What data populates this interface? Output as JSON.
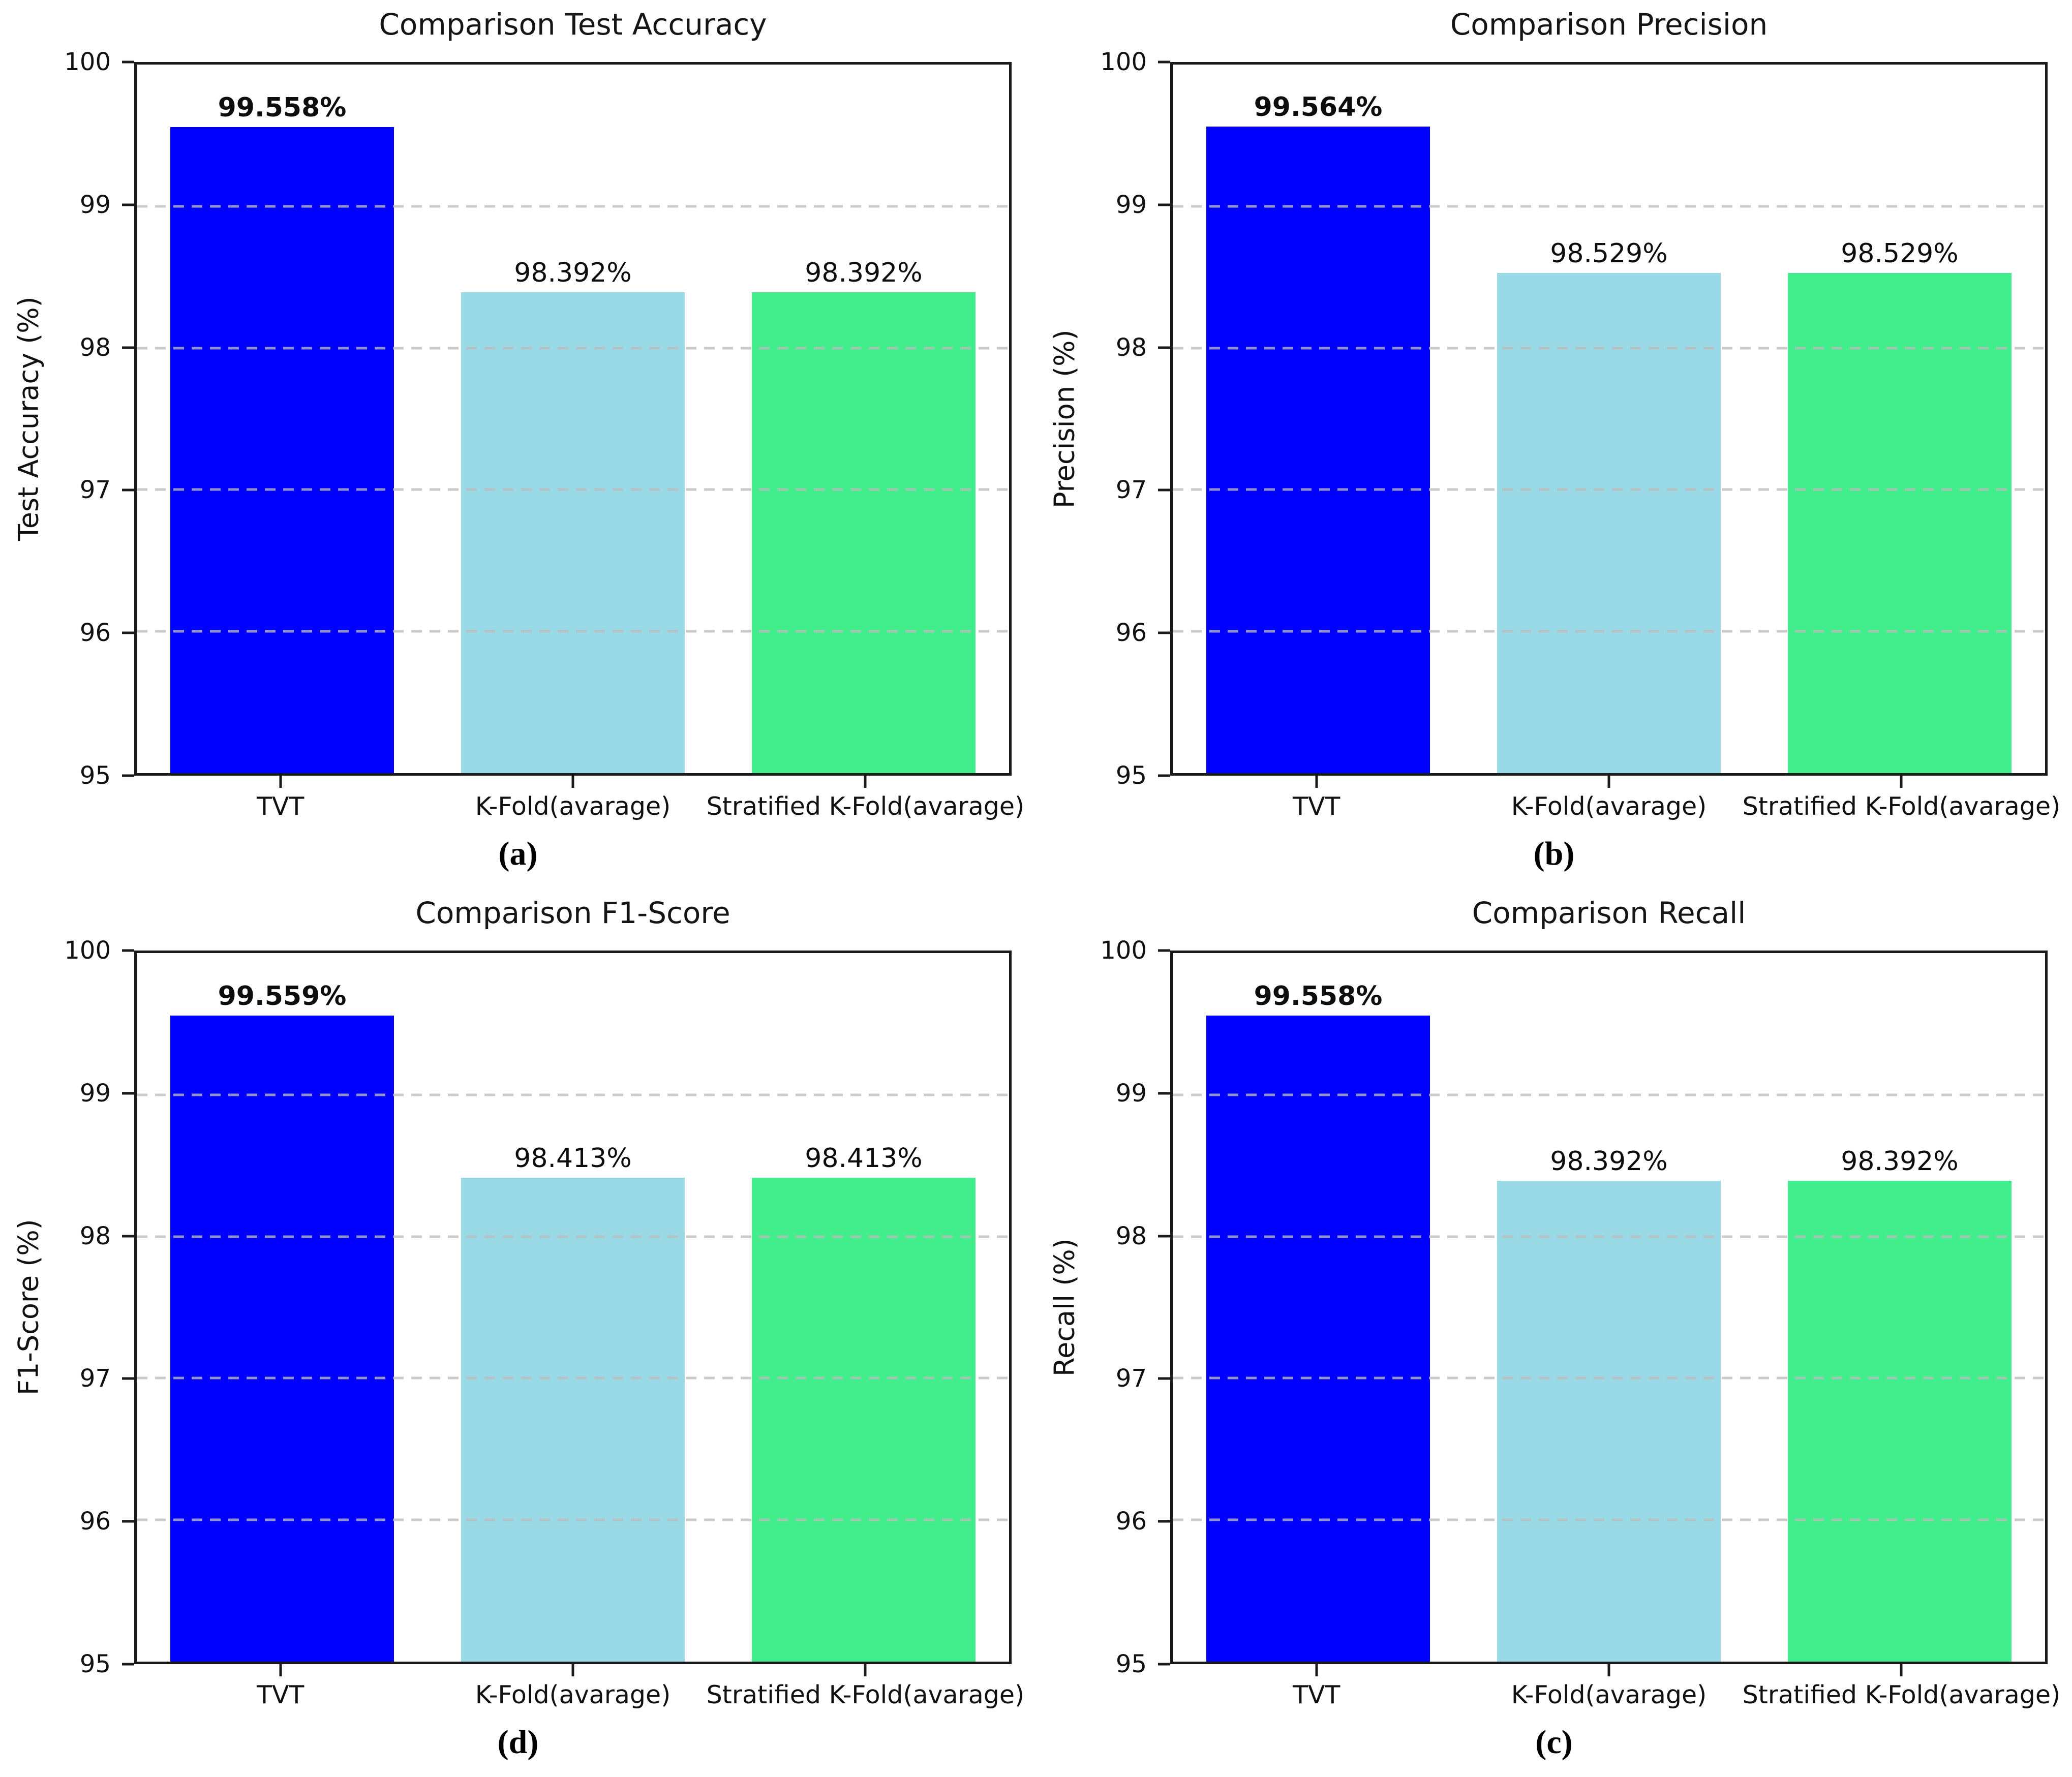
{
  "figure": {
    "background": "#ffffff",
    "layout": "2x2 grid of bar charts"
  },
  "palette": {
    "tvt": "#0000ff",
    "kfold": "#9adae6",
    "stratified": "#42ed8c",
    "grid": "#c8c8c8",
    "spine": "#1a1a1a",
    "text": "#111111"
  },
  "categories": [
    "TVT",
    "K-Fold(avarage)",
    "Stratified K-Fold(avarage)"
  ],
  "chart_data": [
    {
      "type": "bar",
      "title": "Comparison Test Accuracy",
      "xlabel": "",
      "ylabel": "Test Accuracy (%)",
      "caption": "(a)",
      "categories": [
        "TVT",
        "K-Fold(avarage)",
        "Stratified K-Fold(avarage)"
      ],
      "values": [
        99.558,
        98.392,
        98.392
      ],
      "value_labels": [
        "99.558%",
        "98.392%",
        "98.392%"
      ],
      "bar_colors": [
        "tvt",
        "kfold",
        "stratified"
      ],
      "ylim": [
        95,
        100
      ],
      "yticks": [
        "100",
        "99",
        "98",
        "97",
        "96",
        "95"
      ],
      "grid_values": [
        99,
        98,
        97,
        96
      ],
      "grid_style": "dashed",
      "legend": "none"
    },
    {
      "type": "bar",
      "title": "Comparison Precision",
      "xlabel": "",
      "ylabel": "Precision (%)",
      "caption": "(b)",
      "categories": [
        "TVT",
        "K-Fold(avarage)",
        "Stratified K-Fold(avarage)"
      ],
      "values": [
        99.564,
        98.529,
        98.529
      ],
      "value_labels": [
        "99.564%",
        "98.529%",
        "98.529%"
      ],
      "bar_colors": [
        "tvt",
        "kfold",
        "stratified"
      ],
      "ylim": [
        95,
        100
      ],
      "yticks": [
        "100",
        "99",
        "98",
        "97",
        "96",
        "95"
      ],
      "grid_values": [
        99,
        98,
        97,
        96
      ],
      "grid_style": "dashed",
      "legend": "none"
    },
    {
      "type": "bar",
      "title": "Comparison F1-Score",
      "xlabel": "",
      "ylabel": "F1-Score (%)",
      "caption": "(d)",
      "categories": [
        "TVT",
        "K-Fold(avarage)",
        "Stratified K-Fold(avarage)"
      ],
      "values": [
        99.559,
        98.413,
        98.413
      ],
      "value_labels": [
        "99.559%",
        "98.413%",
        "98.413%"
      ],
      "bar_colors": [
        "tvt",
        "kfold",
        "stratified"
      ],
      "ylim": [
        95,
        100
      ],
      "yticks": [
        "100",
        "99",
        "98",
        "97",
        "96",
        "95"
      ],
      "grid_values": [
        99,
        98,
        97,
        96
      ],
      "grid_style": "dashed",
      "legend": "none"
    },
    {
      "type": "bar",
      "title": "Comparison Recall",
      "xlabel": "",
      "ylabel": "Recall (%)",
      "caption": "(c)",
      "categories": [
        "TVT",
        "K-Fold(avarage)",
        "Stratified K-Fold(avarage)"
      ],
      "values": [
        99.558,
        98.392,
        98.392
      ],
      "value_labels": [
        "99.558%",
        "98.392%",
        "98.392%"
      ],
      "bar_colors": [
        "tvt",
        "kfold",
        "stratified"
      ],
      "ylim": [
        95,
        100
      ],
      "yticks": [
        "100",
        "99",
        "98",
        "97",
        "96",
        "95"
      ],
      "grid_values": [
        99,
        98,
        97,
        96
      ],
      "grid_style": "dashed",
      "legend": "none"
    }
  ]
}
